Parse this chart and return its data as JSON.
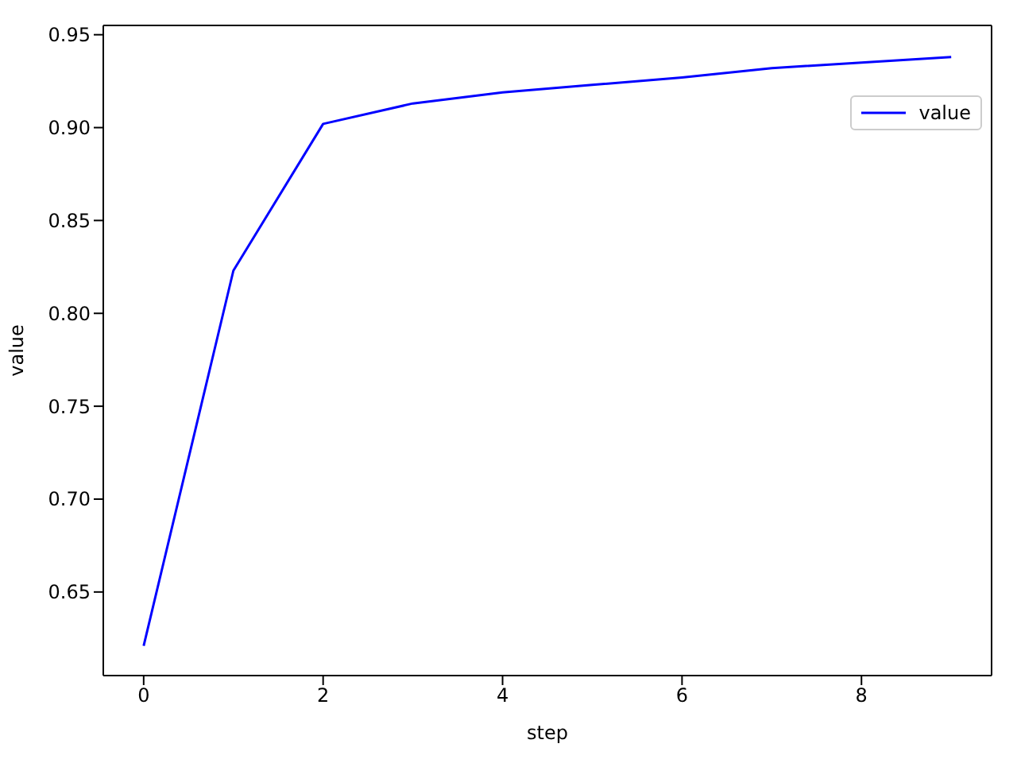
{
  "chart_data": {
    "type": "line",
    "xlabel": "step",
    "ylabel": "value",
    "x": [
      0,
      1,
      2,
      3,
      4,
      5,
      6,
      7,
      8,
      9
    ],
    "series": [
      {
        "name": "value",
        "color": "#0000ff",
        "values": [
          0.621,
          0.823,
          0.902,
          0.913,
          0.919,
          0.923,
          0.927,
          0.932,
          0.935,
          0.938
        ]
      }
    ],
    "xlim": [
      -0.45,
      9.45
    ],
    "xticks": [
      0,
      2,
      4,
      6,
      8
    ],
    "ylim": [
      0.605,
      0.955
    ],
    "yticks": [
      0.65,
      {
        "value": 0.7,
        "label": "0.70"
      },
      0.75,
      {
        "value": 0.8,
        "label": "0.80"
      },
      0.85,
      {
        "value": 0.9,
        "label": "0.90"
      },
      0.95
    ],
    "grid": false,
    "legend": "top right",
    "marker": "none",
    "line_style": "solid"
  }
}
